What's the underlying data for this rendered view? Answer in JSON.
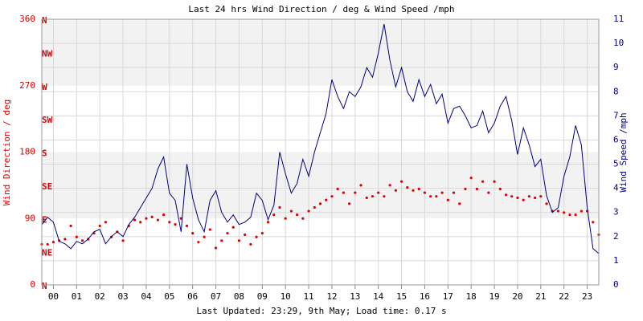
{
  "chart_data": {
    "type": "line",
    "title": "Last 24 hrs Wind Direction / deg & Wind Speed /mph",
    "ylabel": "Wind Direction / deg",
    "y2label": "Wind Speed /mph",
    "footer": "Last Updated: 23:29, 9th May; Load time: 0.17 s",
    "x": [
      -0.5,
      -0.25,
      0,
      0.25,
      0.5,
      0.75,
      1,
      1.25,
      1.5,
      1.75,
      2,
      2.25,
      2.5,
      2.75,
      3,
      3.25,
      3.5,
      3.75,
      4,
      4.25,
      4.5,
      4.75,
      5,
      5.25,
      5.5,
      5.75,
      6,
      6.25,
      6.5,
      6.75,
      7,
      7.25,
      7.5,
      7.75,
      8,
      8.25,
      8.5,
      8.75,
      9,
      9.25,
      9.5,
      9.75,
      10,
      10.25,
      10.5,
      10.75,
      11,
      11.25,
      11.5,
      11.75,
      12,
      12.25,
      12.5,
      12.75,
      13,
      13.25,
      13.5,
      13.75,
      14,
      14.25,
      14.5,
      14.75,
      15,
      15.25,
      15.5,
      15.75,
      16,
      16.25,
      16.5,
      16.75,
      17,
      17.25,
      17.5,
      17.75,
      18,
      18.25,
      18.5,
      18.75,
      19,
      19.25,
      19.5,
      19.75,
      20,
      20.25,
      20.5,
      20.75,
      21,
      21.25,
      21.5,
      21.75,
      22,
      22.25,
      22.5,
      22.75,
      23,
      23.25,
      23.5
    ],
    "series": [
      {
        "type": "scatter",
        "color": "#e00000",
        "axis": "y",
        "values": [
          55,
          55,
          58,
          60,
          62,
          80,
          65,
          60,
          62,
          70,
          80,
          85,
          65,
          72,
          60,
          80,
          88,
          85,
          90,
          92,
          88,
          95,
          85,
          82,
          90,
          80,
          70,
          58,
          65,
          75,
          50,
          60,
          70,
          78,
          60,
          68,
          55,
          65,
          70,
          85,
          95,
          105,
          90,
          100,
          95,
          90,
          100,
          105,
          110,
          115,
          120,
          130,
          125,
          110,
          125,
          135,
          118,
          120,
          125,
          120,
          135,
          128,
          140,
          132,
          128,
          130,
          125,
          120,
          120,
          125,
          115,
          125,
          110,
          130,
          145,
          130,
          140,
          125,
          140,
          130,
          122,
          120,
          118,
          115,
          120,
          118,
          120,
          110,
          100,
          100,
          98,
          95,
          95,
          100,
          100,
          85,
          68
        ]
      },
      {
        "type": "line",
        "color": "#000080",
        "axis": "y2",
        "values": [
          2.5,
          2.8,
          2.6,
          1.8,
          1.7,
          1.5,
          1.8,
          1.7,
          1.9,
          2.2,
          2.3,
          1.7,
          2.0,
          2.2,
          2.0,
          2.5,
          2.8,
          3.2,
          3.6,
          4.0,
          4.8,
          5.3,
          3.8,
          3.5,
          2.2,
          5.0,
          3.6,
          2.7,
          2.2,
          3.5,
          3.9,
          3.0,
          2.6,
          2.9,
          2.5,
          2.6,
          2.8,
          3.8,
          3.5,
          2.7,
          3.3,
          5.5,
          4.6,
          3.8,
          4.2,
          5.2,
          4.5,
          5.5,
          6.3,
          7.1,
          8.5,
          7.8,
          7.3,
          8.0,
          7.8,
          8.2,
          9.0,
          8.6,
          9.6,
          10.8,
          9.3,
          8.2,
          9.0,
          8.0,
          7.6,
          8.5,
          7.8,
          8.3,
          7.5,
          7.9,
          6.7,
          7.3,
          7.4,
          7.0,
          6.5,
          6.6,
          7.2,
          6.3,
          6.7,
          7.4,
          7.8,
          6.8,
          5.4,
          6.5,
          5.8,
          4.9,
          5.2,
          3.7,
          3.0,
          3.2,
          4.5,
          5.3,
          6.6,
          5.8,
          3.2,
          1.5,
          1.3
        ]
      }
    ],
    "xlim": [
      -0.5,
      23.5
    ],
    "xticks": [
      {
        "value": 0,
        "label": "00"
      },
      {
        "value": 1,
        "label": "01"
      },
      {
        "value": 2,
        "label": "02"
      },
      {
        "value": 3,
        "label": "03"
      },
      {
        "value": 4,
        "label": "04"
      },
      {
        "value": 5,
        "label": "05"
      },
      {
        "value": 6,
        "label": "06"
      },
      {
        "value": 7,
        "label": "07"
      },
      {
        "value": 8,
        "label": "08"
      },
      {
        "value": 9,
        "label": "09"
      },
      10,
      11,
      12,
      13,
      14,
      15,
      16,
      17,
      18,
      19,
      20,
      21,
      22,
      23
    ],
    "ylim": [
      0,
      360
    ],
    "yticks": [
      0,
      90,
      180,
      270,
      360
    ],
    "compass_ticks": [
      {
        "value": 0,
        "label": "N"
      },
      {
        "value": 45,
        "label": "NE"
      },
      {
        "value": 90,
        "label": "E"
      },
      {
        "value": 135,
        "label": "SE"
      },
      {
        "value": 180,
        "label": "S"
      },
      {
        "value": 225,
        "label": "SW"
      },
      {
        "value": 270,
        "label": "W"
      },
      {
        "value": 315,
        "label": "NW"
      },
      {
        "value": 360,
        "label": "N"
      }
    ],
    "shaded_bands": [
      [
        90,
        180
      ],
      [
        270,
        360
      ]
    ],
    "y2lim": [
      0,
      11
    ],
    "y2ticks": [
      0,
      1,
      2,
      3,
      4,
      5,
      6,
      7,
      8,
      9,
      10,
      11
    ],
    "grid": true
  }
}
